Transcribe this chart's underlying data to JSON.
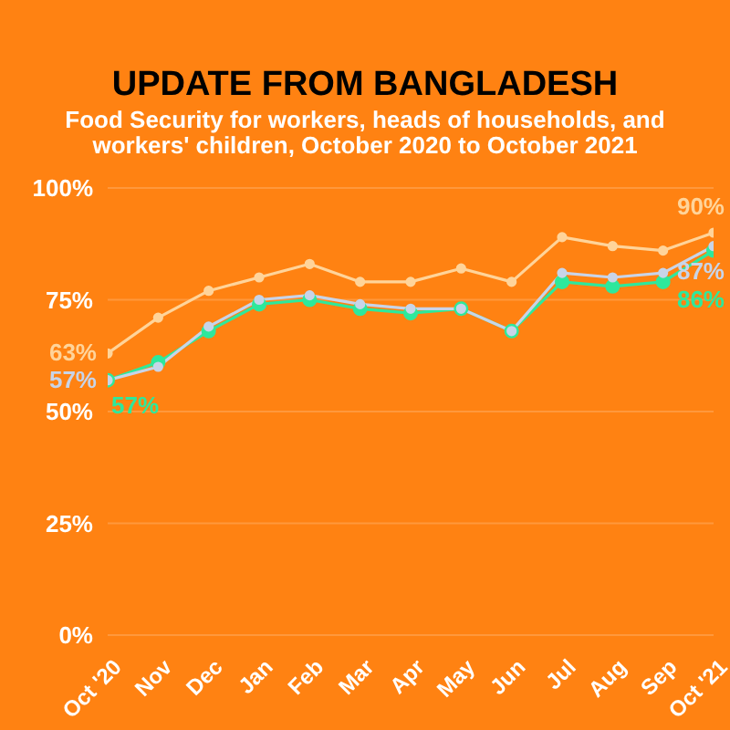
{
  "chart_data": {
    "type": "line",
    "title": "UPDATE FROM BANGLADESH",
    "subtitle": "Food Security for workers, heads of households,  and workers' children, October 2020 to October 2021",
    "categories": [
      "Oct '20",
      "Nov",
      "Dec",
      "Jan",
      "Feb",
      "Mar",
      "Apr",
      "May",
      "Jun",
      "Jul",
      "Aug",
      "Sep",
      "Oct '21"
    ],
    "series": [
      {
        "color": "#2ee89c",
        "values": [
          57,
          61,
          68,
          74,
          75,
          73,
          72,
          73,
          68,
          79,
          78,
          79,
          86
        ],
        "value_labels": [
          "57%",
          null,
          null,
          null,
          null,
          null,
          null,
          null,
          null,
          null,
          null,
          null,
          "86%"
        ]
      },
      {
        "color": "#c8d4e8",
        "values": [
          57,
          60,
          69,
          75,
          76,
          74,
          73,
          73,
          68,
          81,
          80,
          81,
          87
        ],
        "value_labels": [
          "57%",
          null,
          null,
          null,
          null,
          null,
          null,
          null,
          null,
          null,
          null,
          null,
          "87%"
        ]
      },
      {
        "color": "#ffd49a",
        "values": [
          63,
          71,
          77,
          80,
          83,
          79,
          79,
          82,
          79,
          89,
          87,
          86,
          90
        ],
        "value_labels": [
          "63%",
          null,
          null,
          null,
          null,
          null,
          null,
          null,
          null,
          null,
          null,
          null,
          "90%"
        ]
      }
    ],
    "ylim": [
      0,
      100
    ],
    "yticks": [
      {
        "value": 0,
        "label": "0%"
      },
      {
        "value": 25,
        "label": "25%"
      },
      {
        "value": 50,
        "label": "50%"
      },
      {
        "value": 75,
        "label": "75%"
      },
      {
        "value": 100,
        "label": "100%"
      }
    ],
    "grid": "y",
    "legend": false,
    "marker": "circle",
    "line_style": "solid"
  }
}
